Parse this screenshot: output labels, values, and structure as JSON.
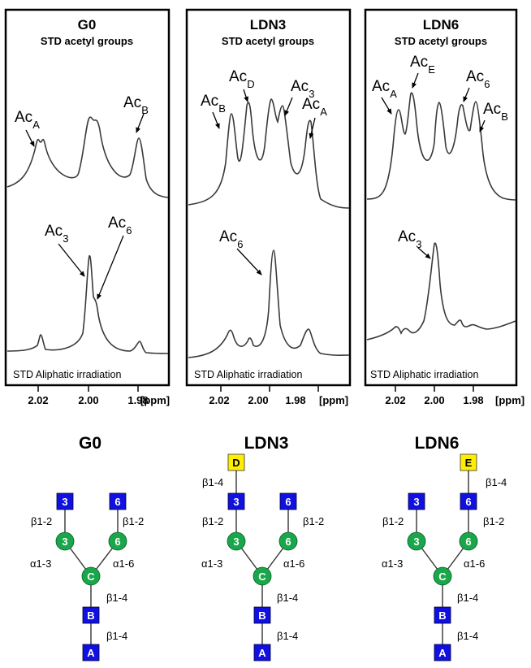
{
  "colors": {
    "frame": "#000000",
    "spectrum": "#3a3a3a",
    "glcnac": "#1010e0",
    "mannose": "#1aa64a",
    "galactose": "#ffee00"
  },
  "axis": {
    "ticks": [
      "2.02",
      "2.00",
      "1.98"
    ],
    "unit": "[ppm]"
  },
  "panels": [
    {
      "title": "G0",
      "subtitle": "STD acetyl groups",
      "bottom_note": "STD Aliphatic irradiation",
      "labels": [
        {
          "main": "Ac",
          "sub": "A"
        },
        {
          "main": "Ac",
          "sub": "B"
        },
        {
          "main": "Ac",
          "sub": "3"
        },
        {
          "main": "Ac",
          "sub": "6"
        }
      ]
    },
    {
      "title": "LDN3",
      "subtitle": "STD acetyl groups",
      "bottom_note": "STD Aliphatic irradiation",
      "labels": [
        {
          "main": "Ac",
          "sub": "B"
        },
        {
          "main": "Ac",
          "sub": "D"
        },
        {
          "main": "Ac",
          "sub": "3"
        },
        {
          "main": "Ac",
          "sub": "A"
        },
        {
          "main": "Ac",
          "sub": "6"
        }
      ]
    },
    {
      "title": "LDN6",
      "subtitle": "STD acetyl groups",
      "bottom_note": "STD Aliphatic irradiation",
      "labels": [
        {
          "main": "Ac",
          "sub": "A"
        },
        {
          "main": "Ac",
          "sub": "E"
        },
        {
          "main": "Ac",
          "sub": "6"
        },
        {
          "main": "Ac",
          "sub": "B"
        },
        {
          "main": "Ac",
          "sub": "3"
        }
      ]
    }
  ],
  "glycans": [
    {
      "title": "G0",
      "nodes": {
        "A": "A",
        "B": "B",
        "C": "C",
        "M3": "3",
        "M6": "6",
        "G3": "3",
        "G6": "6"
      },
      "linkages": {
        "AB": "β1-4",
        "BC": "β1-4",
        "CM3": "α1-3",
        "CM6": "α1-6",
        "M3G3": "β1-2",
        "M6G6": "β1-2"
      }
    },
    {
      "title": "LDN3",
      "nodes": {
        "A": "A",
        "B": "B",
        "C": "C",
        "M3": "3",
        "M6": "6",
        "G3": "3",
        "G6": "6",
        "X": "D"
      },
      "linkages": {
        "AB": "β1-4",
        "BC": "β1-4",
        "CM3": "α1-3",
        "CM6": "α1-6",
        "M3G3": "β1-2",
        "M6G6": "β1-2",
        "GX": "β1-4"
      }
    },
    {
      "title": "LDN6",
      "nodes": {
        "A": "A",
        "B": "B",
        "C": "C",
        "M3": "3",
        "M6": "6",
        "G3": "3",
        "G6": "6",
        "X": "E"
      },
      "linkages": {
        "AB": "β1-4",
        "BC": "β1-4",
        "CM3": "α1-3",
        "CM6": "α1-6",
        "M3G3": "β1-2",
        "M6G6": "β1-2",
        "GX": "β1-4"
      }
    }
  ]
}
